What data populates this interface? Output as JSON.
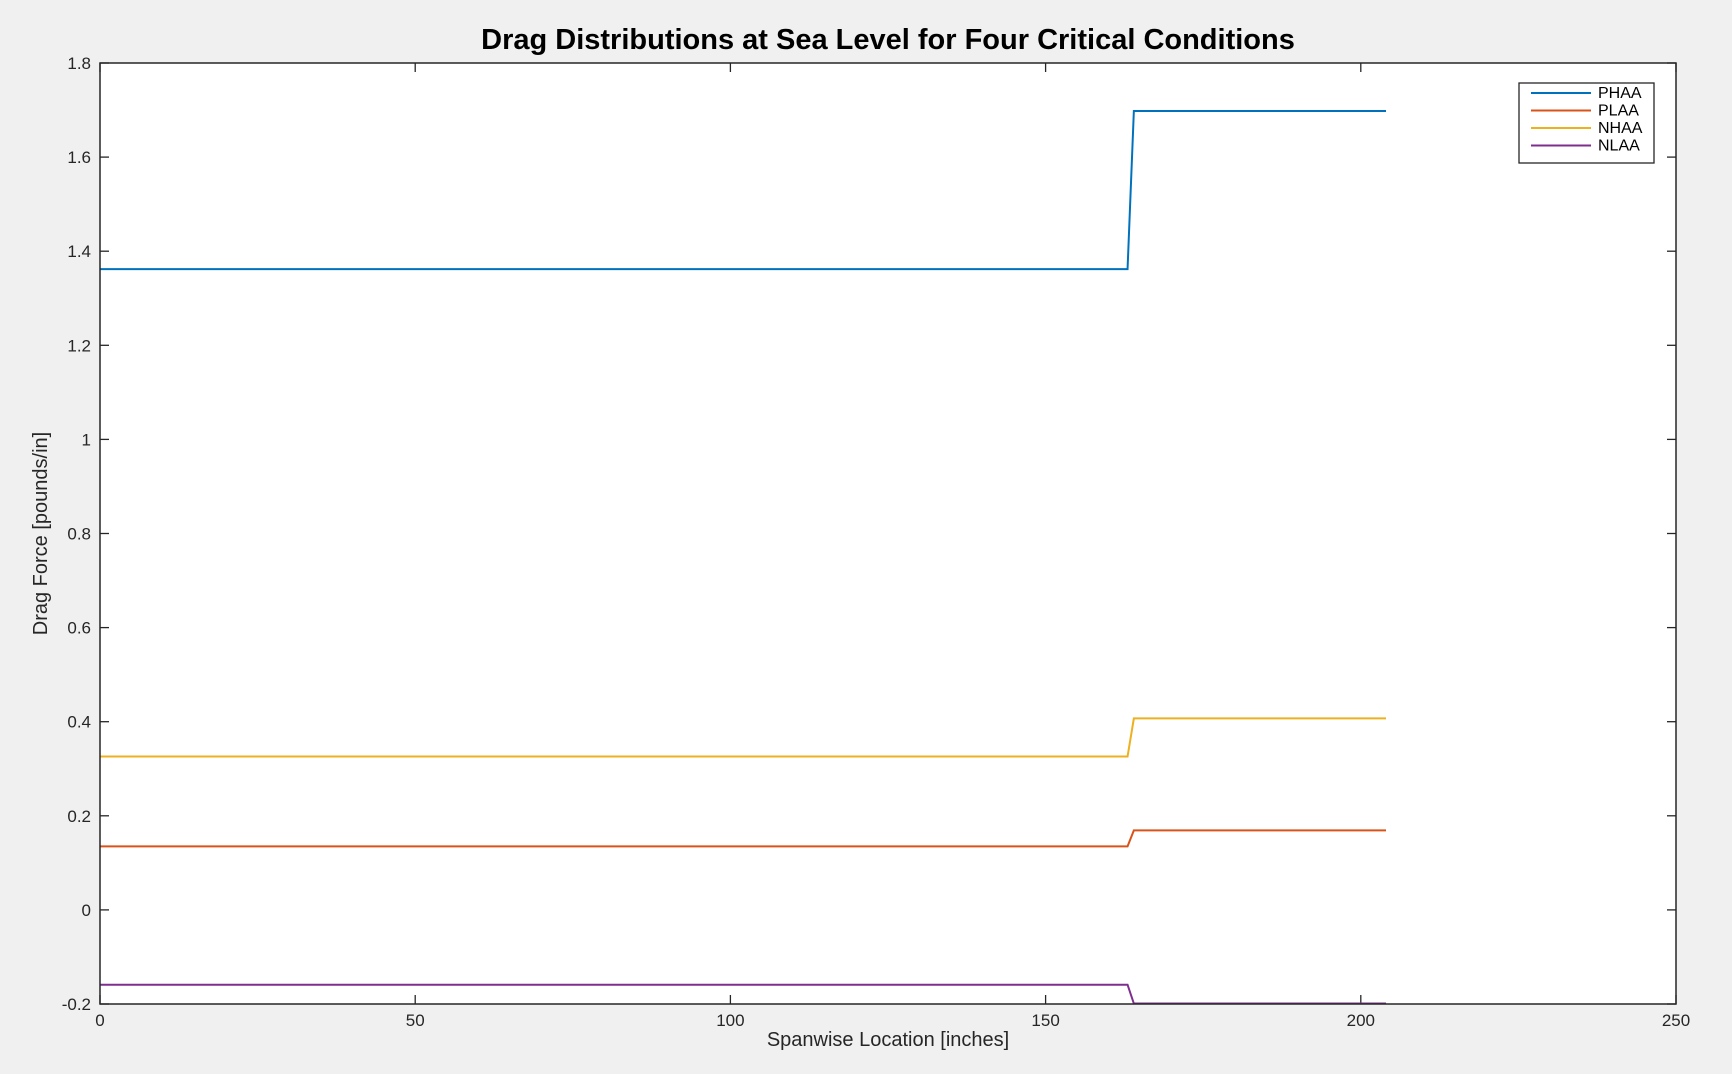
{
  "chart_data": {
    "type": "line",
    "title": "Drag Distributions at Sea Level for Four Critical Conditions",
    "xlabel": "Spanwise Location [inches]",
    "ylabel": "Drag Force [pounds/in]",
    "xlim": [
      0,
      250
    ],
    "ylim": [
      -0.2,
      1.8
    ],
    "xticks": [
      "0",
      "50",
      "100",
      "150",
      "200",
      "250"
    ],
    "yticks": [
      "-0.2",
      "0",
      "0.2",
      "0.4",
      "0.6",
      "0.8",
      "1",
      "1.2",
      "1.4",
      "1.6",
      "1.8"
    ],
    "grid": false,
    "legend_position": "top-right",
    "series": [
      {
        "name": "PHAA",
        "color": "#0072bd",
        "x": [
          0,
          163,
          164,
          204
        ],
        "y": [
          1.362,
          1.362,
          1.698,
          1.698
        ]
      },
      {
        "name": "PLAA",
        "color": "#d95319",
        "x": [
          0,
          163,
          164,
          204
        ],
        "y": [
          0.135,
          0.135,
          0.169,
          0.169
        ]
      },
      {
        "name": "NHAA",
        "color": "#edb120",
        "x": [
          0,
          163,
          164,
          204
        ],
        "y": [
          0.326,
          0.326,
          0.407,
          0.407
        ]
      },
      {
        "name": "NLAA",
        "color": "#7e2f8e",
        "x": [
          0,
          163,
          164,
          204
        ],
        "y": [
          -0.159,
          -0.159,
          -0.199,
          -0.199
        ]
      }
    ]
  }
}
